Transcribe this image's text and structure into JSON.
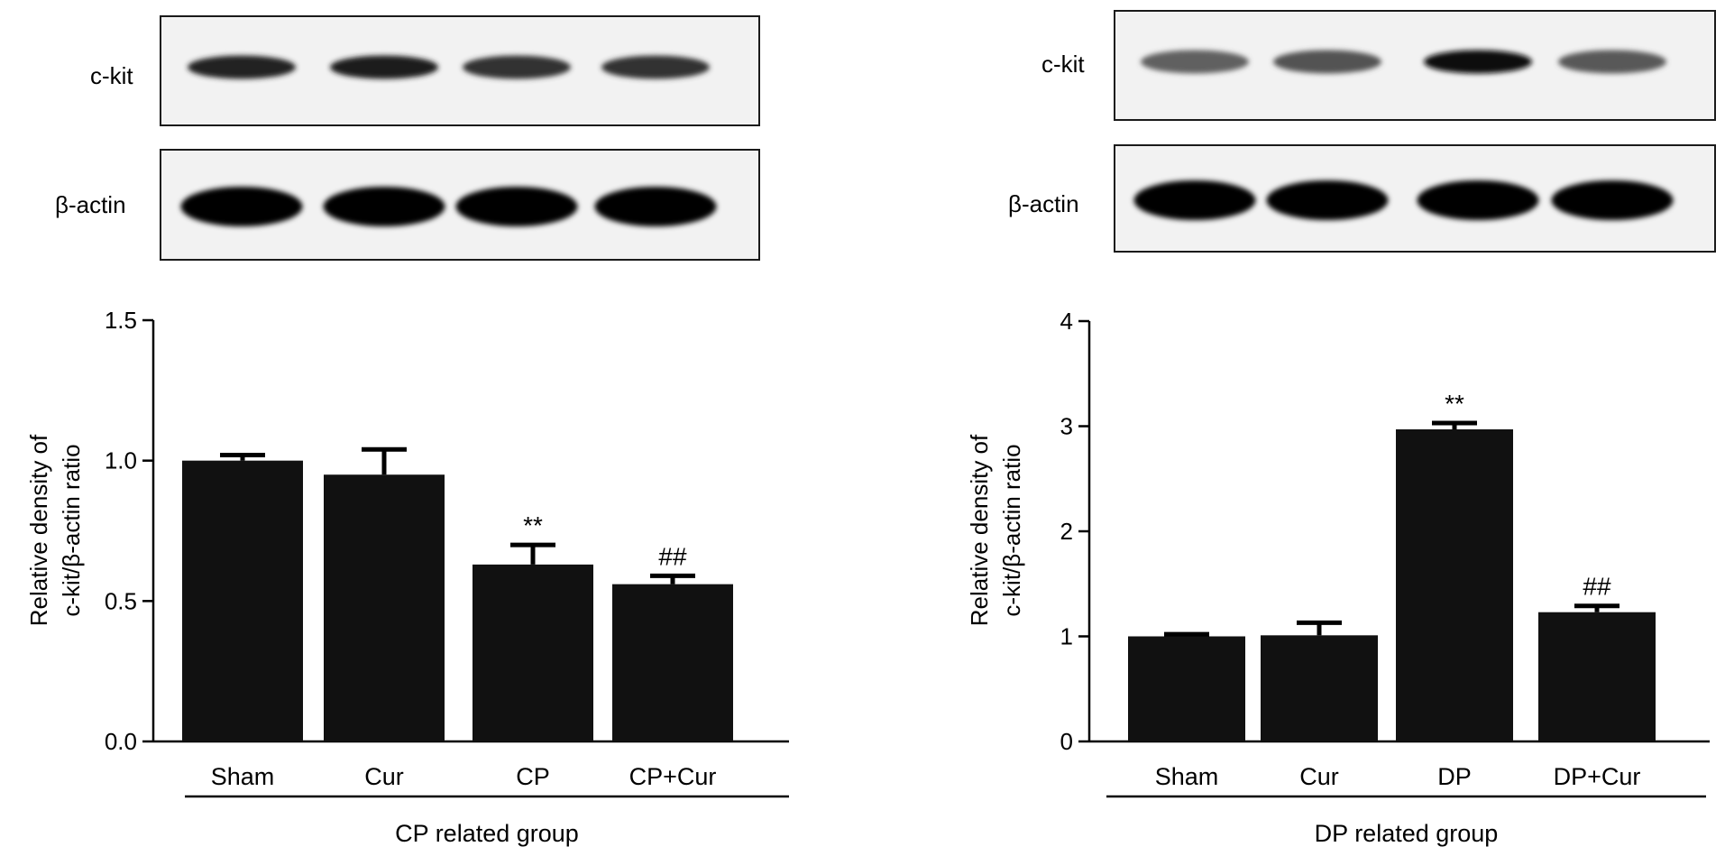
{
  "panels": [
    {
      "blot": {
        "rows": [
          {
            "label": "c-kit",
            "band_intensity": [
              0.86,
              0.88,
              0.8,
              0.8
            ]
          },
          {
            "label": "β-actin",
            "band_intensity": [
              1.0,
              1.0,
              1.0,
              1.0
            ]
          }
        ]
      },
      "group_label": "CP related group"
    },
    {
      "blot": {
        "rows": [
          {
            "label": "c-kit",
            "band_intensity": [
              0.62,
              0.68,
              0.95,
              0.65
            ]
          },
          {
            "label": "β-actin",
            "band_intensity": [
              1.0,
              1.0,
              1.0,
              1.0
            ]
          }
        ]
      },
      "group_label": "DP related group"
    }
  ],
  "chart_data": [
    {
      "type": "bar",
      "categories": [
        "Sham",
        "Cur",
        "CP",
        "CP+Cur"
      ],
      "values": [
        1.0,
        0.95,
        0.63,
        0.56
      ],
      "errors": [
        0.02,
        0.09,
        0.07,
        0.03
      ],
      "annotations": [
        "",
        "",
        "**",
        "##"
      ],
      "ylabel_line1": "Relative density of",
      "ylabel_line2": "c-kit/β-actin ratio",
      "xlabel": "CP related group",
      "ylim": [
        0,
        1.5
      ],
      "yticks": [
        0.0,
        0.5,
        1.0,
        1.5
      ],
      "ytick_labels": [
        "0.0",
        "0.5",
        "1.0",
        "1.5"
      ],
      "bar_color": "#111111"
    },
    {
      "type": "bar",
      "categories": [
        "Sham",
        "Cur",
        "DP",
        "DP+Cur"
      ],
      "values": [
        1.0,
        1.01,
        2.97,
        1.23
      ],
      "errors": [
        0.02,
        0.12,
        0.06,
        0.06
      ],
      "annotations": [
        "",
        "",
        "**",
        "##"
      ],
      "ylabel_line1": "Relative density of",
      "ylabel_line2": "c-kit/β-actin ratio",
      "xlabel": "DP related group",
      "ylim": [
        0,
        4
      ],
      "yticks": [
        0,
        1,
        2,
        3,
        4
      ],
      "ytick_labels": [
        "0",
        "1",
        "2",
        "3",
        "4"
      ],
      "bar_color": "#111111"
    }
  ]
}
